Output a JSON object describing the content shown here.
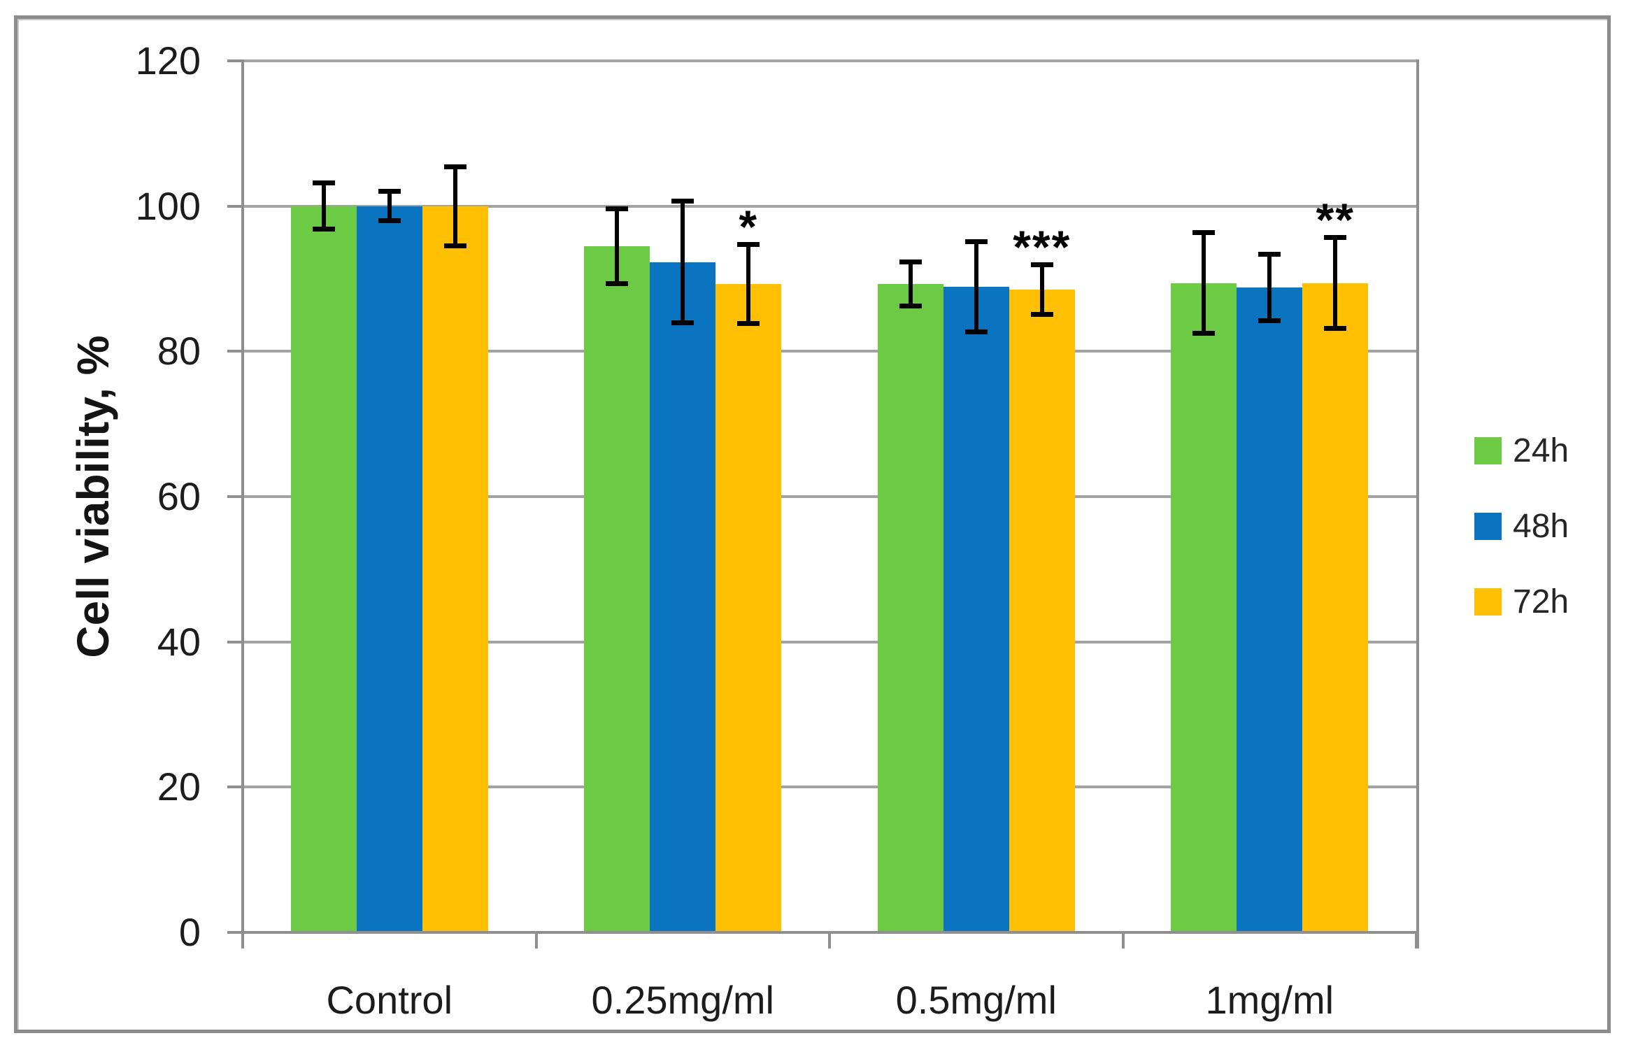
{
  "chart_data": {
    "type": "bar",
    "title": "",
    "xlabel": "",
    "ylabel": "Cell viability, %",
    "categories": [
      "Control",
      "0.25mg/ml",
      "0.5mg/ml",
      "1mg/ml"
    ],
    "series": [
      {
        "name": "24h",
        "color": "#6cca44",
        "values": [
          100,
          94.5,
          89.3,
          89.4
        ],
        "errors": [
          3.2,
          5.2,
          3.1,
          7.0
        ]
      },
      {
        "name": "48h",
        "color": "#0b74c0",
        "values": [
          100,
          92.3,
          88.9,
          88.8
        ],
        "errors": [
          2.1,
          8.4,
          6.3,
          4.6
        ]
      },
      {
        "name": "72h",
        "color": "#ffc003",
        "values": [
          100,
          89.3,
          88.5,
          89.4
        ],
        "errors": [
          5.5,
          5.5,
          3.5,
          6.3
        ]
      }
    ],
    "annotations": [
      {
        "category_index": 1,
        "series_index": 2,
        "text": "*"
      },
      {
        "category_index": 2,
        "series_index": 2,
        "text": "***"
      },
      {
        "category_index": 3,
        "series_index": 2,
        "text": "**"
      }
    ],
    "y_ticks": [
      0,
      20,
      40,
      60,
      80,
      100,
      120
    ],
    "ylim": [
      0,
      120
    ],
    "grid": true,
    "legend_position": "right",
    "error_bars": true
  },
  "colors": {
    "grid": "#a3a3a3",
    "axis": "#8f8f8f",
    "outer_border": "#8c8c8c",
    "tick_text": "#1c1c1c",
    "legend_text": "#262626",
    "error_bar": "#000000",
    "background": "#ffffff"
  }
}
